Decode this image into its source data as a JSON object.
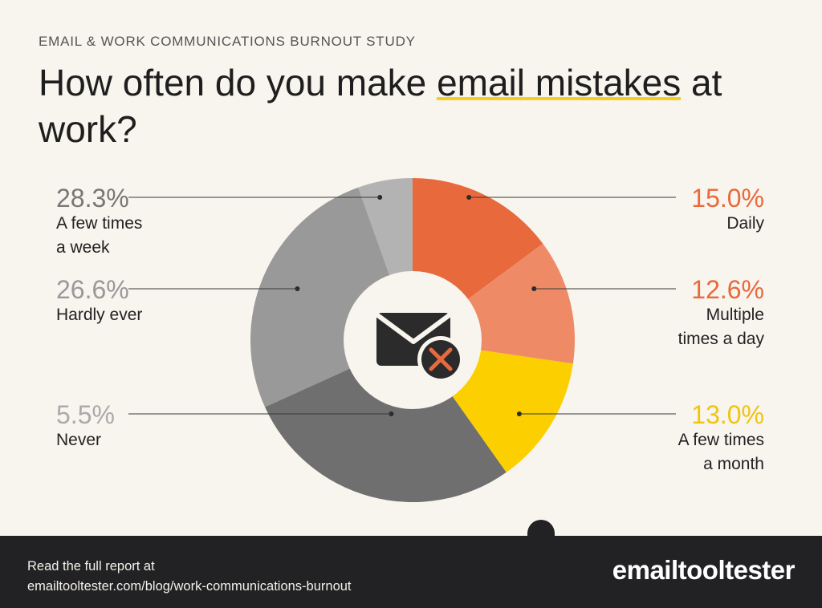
{
  "header": {
    "kicker": "EMAIL & WORK COMMUNICATIONS BURNOUT STUDY",
    "title_before": "How often do you make ",
    "title_highlight": "email mistakes",
    "title_after": " at work?"
  },
  "center_icon": "email-error-icon",
  "chart_data": {
    "type": "pie",
    "style": "donut",
    "title": "How often do you make email mistakes at work?",
    "slices": [
      {
        "label": "Daily",
        "label_lines": [
          "Daily"
        ],
        "value": 15.0,
        "display": "15.0%",
        "color": "#e8693c",
        "text_color": "#e8693c",
        "side": "right"
      },
      {
        "label": "Multiple times a day",
        "label_lines": [
          "Multiple",
          "times a day"
        ],
        "value": 12.6,
        "display": "12.6%",
        "color": "#ee8a66",
        "text_color": "#e8693c",
        "side": "right"
      },
      {
        "label": "A few times a month",
        "label_lines": [
          "A few times",
          "a month"
        ],
        "value": 13.0,
        "display": "13.0%",
        "color": "#fbcf00",
        "text_color": "#f1c40f",
        "side": "right"
      },
      {
        "label": "A few times a week",
        "label_lines": [
          "A few times",
          "a week"
        ],
        "value": 28.3,
        "display": "28.3%",
        "color": "#6f6f6f",
        "text_color": "#777777",
        "side": "left"
      },
      {
        "label": "Hardly ever",
        "label_lines": [
          "Hardly ever"
        ],
        "value": 26.6,
        "display": "26.6%",
        "color": "#999999",
        "text_color": "#999999",
        "side": "left"
      },
      {
        "label": "Never",
        "label_lines": [
          "Never"
        ],
        "value": 5.5,
        "display": "5.5%",
        "color": "#b3b3b3",
        "text_color": "#aaaaaa",
        "side": "left"
      }
    ],
    "legend": "callouts",
    "grid": false
  },
  "footer": {
    "line1": "Read the full report at",
    "line2": "emailtooltester.com/blog/work-communications-burnout",
    "brand": "emailtooltester"
  }
}
